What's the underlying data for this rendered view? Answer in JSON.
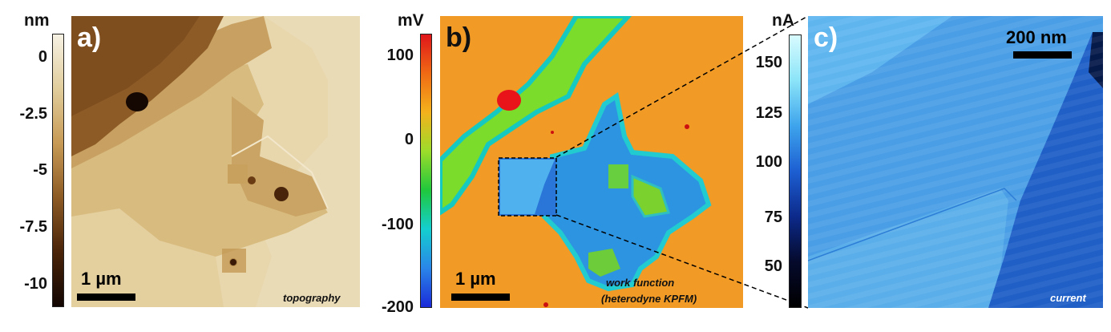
{
  "panels": {
    "a": {
      "label": "a)",
      "colorbar_unit": "nm",
      "colorbar_ticks": [
        "0",
        "-2.5",
        "-5",
        "-7.5",
        "-10"
      ],
      "colorbar_colors": [
        "#f6f1e4",
        "#e1cd9c",
        "#c79a55",
        "#8c5a24",
        "#4a2409",
        "#120602"
      ],
      "scale_bar_label": "1 µm",
      "caption": "topography"
    },
    "b": {
      "label": "b)",
      "colorbar_unit": "mV",
      "colorbar_ticks": [
        "100",
        "0",
        "-100",
        "-200"
      ],
      "colorbar_colors": [
        "#e0151a",
        "#f06a14",
        "#f4b21c",
        "#9cdc2a",
        "#1fc83c",
        "#14cfd0",
        "#2a86e8",
        "#1a2ad8"
      ],
      "scale_bar_label": "1 µm",
      "caption_line1": "work function",
      "caption_line2": "(heterodyne KPFM)"
    },
    "c": {
      "label": "c)",
      "colorbar_unit": "nA",
      "colorbar_ticks": [
        "150",
        "125",
        "100",
        "75",
        "50"
      ],
      "colorbar_colors": [
        "#d8fbff",
        "#8be4f8",
        "#3ea4ec",
        "#1d5fd2",
        "#0c2a8a",
        "#050a2c",
        "#000000"
      ],
      "scale_bar_label": "200 nm",
      "caption": "current"
    }
  }
}
